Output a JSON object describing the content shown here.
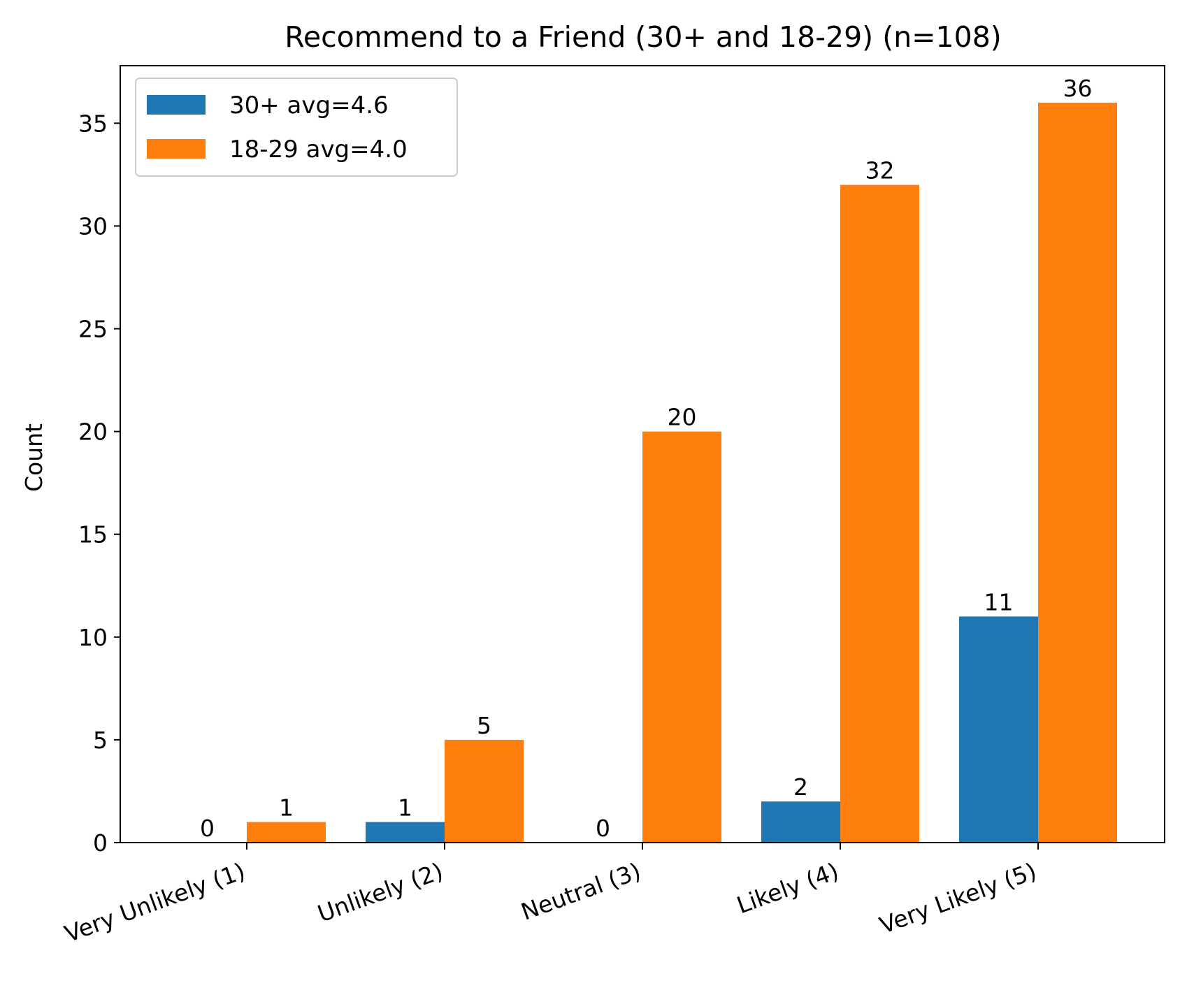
{
  "chart_data": {
    "type": "bar",
    "title": "Recommend to a Friend (30+ and 18-29) (n=108)",
    "xlabel": "",
    "ylabel": "Count",
    "categories": [
      "Very Unlikely (1)",
      "Unlikely (2)",
      "Neutral (3)",
      "Likely (4)",
      "Very Likely (5)"
    ],
    "series": [
      {
        "name": "30+ avg=4.6",
        "values": [
          0,
          1,
          0,
          2,
          11
        ],
        "color": "#1f77b4"
      },
      {
        "name": "18-29 avg=4.0",
        "values": [
          1,
          5,
          20,
          32,
          36
        ],
        "color": "#ff7f0e"
      }
    ],
    "ylim": [
      0,
      37.8
    ],
    "yticks": [
      0,
      5,
      10,
      15,
      20,
      25,
      30,
      35
    ],
    "grid": false,
    "legend_position": "top-left",
    "data_labels": true
  }
}
